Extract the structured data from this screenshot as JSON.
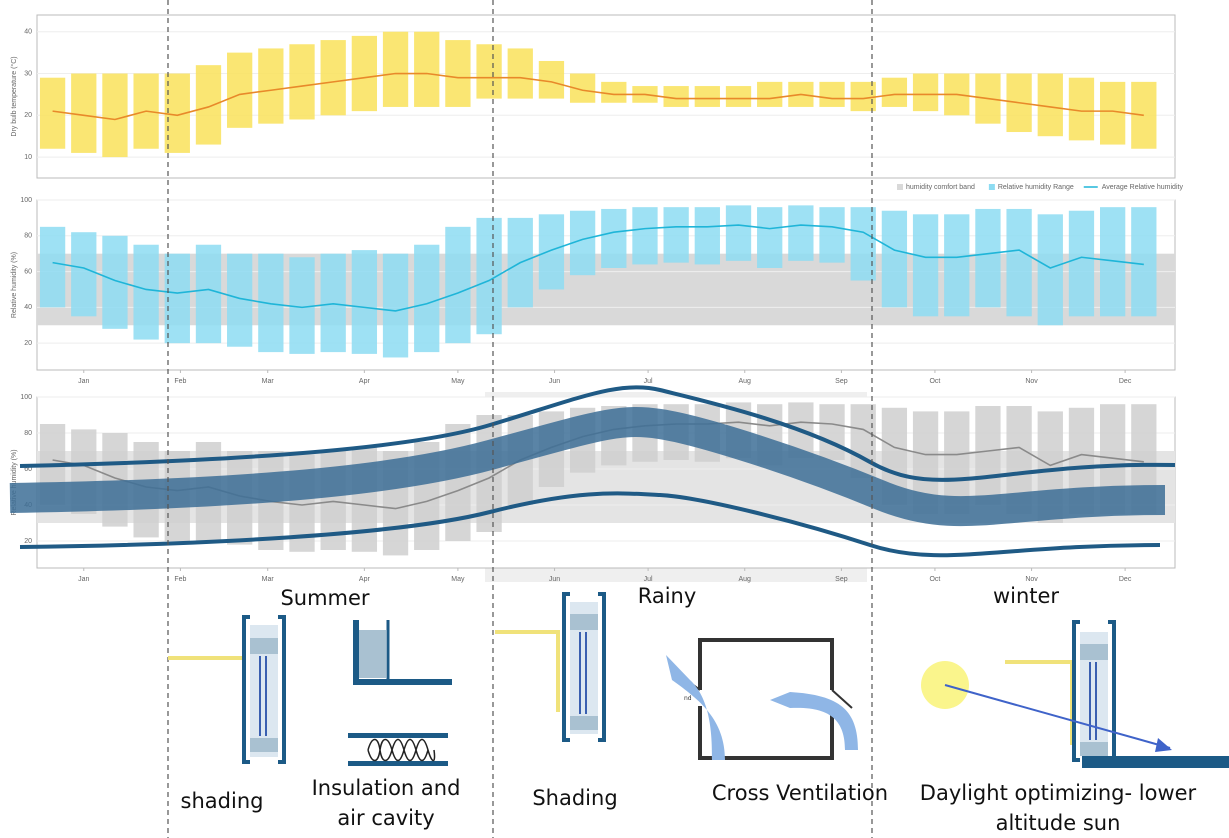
{
  "chart_data": [
    {
      "type": "line",
      "ylabel": "Dry bulb temperature (°C)",
      "x": [
        5,
        15,
        25,
        35,
        45,
        55,
        65,
        75,
        85,
        95,
        105,
        115,
        125,
        135,
        145,
        155,
        165,
        175,
        185,
        195,
        205,
        215,
        225,
        235,
        245,
        255,
        265,
        275,
        285,
        295,
        305,
        315,
        325,
        335,
        345,
        355
      ],
      "xlim": [
        0,
        365
      ],
      "ylim": [
        5,
        44
      ],
      "yticks": [
        10,
        20,
        30,
        40
      ],
      "grid": true,
      "range": {
        "color": "#f9e25a",
        "low": [
          12,
          11,
          10,
          12,
          11,
          13,
          17,
          18,
          19,
          20,
          21,
          22,
          22,
          22,
          24,
          24,
          24,
          23,
          23,
          23,
          22,
          22,
          22,
          22,
          22,
          22,
          21,
          22,
          21,
          20,
          18,
          16,
          15,
          14,
          13,
          12
        ],
        "high": [
          29,
          30,
          30,
          30,
          30,
          32,
          35,
          36,
          37,
          38,
          39,
          40,
          40,
          38,
          37,
          36,
          33,
          30,
          28,
          27,
          27,
          27,
          27,
          28,
          28,
          28,
          28,
          29,
          30,
          30,
          30,
          30,
          30,
          29,
          28,
          28
        ]
      },
      "average": {
        "color": "#e8892a",
        "values": [
          21,
          20,
          19,
          21,
          20,
          22,
          25,
          26,
          27,
          28,
          29,
          30,
          30,
          29,
          29,
          29,
          28,
          26,
          25,
          25,
          24,
          24,
          24,
          24,
          25,
          24,
          24,
          25,
          25,
          25,
          24,
          23,
          22,
          21,
          21,
          20
        ]
      }
    },
    {
      "type": "line",
      "ylabel": "Relative humidity (%)",
      "x": [
        5,
        15,
        25,
        35,
        45,
        55,
        65,
        75,
        85,
        95,
        105,
        115,
        125,
        135,
        145,
        155,
        165,
        175,
        185,
        195,
        205,
        215,
        225,
        235,
        245,
        255,
        265,
        275,
        285,
        295,
        305,
        315,
        325,
        335,
        345,
        355
      ],
      "xlim": [
        0,
        365
      ],
      "ylim": [
        5,
        100
      ],
      "yticks": [
        20,
        40,
        60,
        80,
        100
      ],
      "grid": true,
      "xticks": [
        {
          "value": 15,
          "label": "Jan"
        },
        {
          "value": 46,
          "label": "Feb"
        },
        {
          "value": 74,
          "label": "Mar"
        },
        {
          "value": 105,
          "label": "Apr"
        },
        {
          "value": 135,
          "label": "May"
        },
        {
          "value": 166,
          "label": "Jun"
        },
        {
          "value": 196,
          "label": "Jul"
        },
        {
          "value": 227,
          "label": "Aug"
        },
        {
          "value": 258,
          "label": "Sep"
        },
        {
          "value": 288,
          "label": "Oct"
        },
        {
          "value": 319,
          "label": "Nov"
        },
        {
          "value": 349,
          "label": "Dec"
        }
      ],
      "comfort_band": {
        "name": "humidity comfort band",
        "color": "#d9d9d9",
        "range": [
          30,
          70
        ]
      },
      "range": {
        "name": "Relative humidity Range",
        "color": "#8ddcf2",
        "low": [
          40,
          35,
          28,
          22,
          20,
          20,
          18,
          15,
          14,
          15,
          14,
          12,
          15,
          20,
          25,
          40,
          50,
          58,
          62,
          64,
          65,
          64,
          66,
          62,
          66,
          65,
          55,
          40,
          35,
          35,
          40,
          35,
          30,
          35,
          35,
          35
        ],
        "high": [
          85,
          82,
          80,
          75,
          70,
          75,
          70,
          70,
          68,
          70,
          72,
          70,
          75,
          85,
          90,
          90,
          92,
          94,
          95,
          96,
          96,
          96,
          97,
          96,
          97,
          96,
          96,
          94,
          92,
          92,
          95,
          95,
          92,
          94,
          96,
          96
        ]
      },
      "average": {
        "name": "Average Relative humidity",
        "color": "#1fb5d8",
        "values": [
          65,
          62,
          55,
          50,
          48,
          50,
          45,
          42,
          40,
          42,
          40,
          38,
          42,
          48,
          55,
          65,
          72,
          78,
          82,
          84,
          85,
          85,
          86,
          84,
          86,
          85,
          82,
          72,
          68,
          68,
          70,
          72,
          62,
          68,
          66,
          64
        ]
      }
    },
    {
      "type": "line",
      "ylabel": "Relative humidity (%)",
      "x": [
        5,
        15,
        25,
        35,
        45,
        55,
        65,
        75,
        85,
        95,
        105,
        115,
        125,
        135,
        145,
        155,
        165,
        175,
        185,
        195,
        205,
        215,
        225,
        235,
        245,
        255,
        265,
        275,
        285,
        295,
        305,
        315,
        325,
        335,
        345,
        355
      ],
      "xlim": [
        0,
        365
      ],
      "ylim": [
        5,
        100
      ],
      "yticks": [
        20,
        40,
        60,
        80,
        100
      ],
      "grid": true,
      "xticks": [
        {
          "value": 15,
          "label": "Jan"
        },
        {
          "value": 46,
          "label": "Feb"
        },
        {
          "value": 74,
          "label": "Mar"
        },
        {
          "value": 105,
          "label": "Apr"
        },
        {
          "value": 135,
          "label": "May"
        },
        {
          "value": 166,
          "label": "Jun"
        },
        {
          "value": 196,
          "label": "Jul"
        },
        {
          "value": 227,
          "label": "Aug"
        },
        {
          "value": 258,
          "label": "Sep"
        },
        {
          "value": 288,
          "label": "Oct"
        },
        {
          "value": 319,
          "label": "Nov"
        },
        {
          "value": 349,
          "label": "Dec"
        }
      ],
      "comfort_band": {
        "color": "#e4e4e4",
        "range": [
          30,
          70
        ]
      },
      "range": {
        "color": "#cfcfcf",
        "low": [
          40,
          35,
          28,
          22,
          20,
          20,
          18,
          15,
          14,
          15,
          14,
          12,
          15,
          20,
          25,
          40,
          50,
          58,
          62,
          64,
          65,
          64,
          66,
          62,
          66,
          65,
          55,
          40,
          35,
          35,
          40,
          35,
          30,
          35,
          35,
          35
        ],
        "high": [
          85,
          82,
          80,
          75,
          70,
          75,
          70,
          70,
          68,
          70,
          72,
          70,
          75,
          85,
          90,
          90,
          92,
          94,
          95,
          96,
          96,
          96,
          97,
          96,
          97,
          96,
          96,
          94,
          92,
          92,
          95,
          95,
          92,
          94,
          96,
          96
        ]
      },
      "average": {
        "color": "#8a8a8a",
        "values": [
          65,
          62,
          55,
          50,
          48,
          50,
          45,
          42,
          40,
          42,
          40,
          38,
          42,
          48,
          55,
          65,
          72,
          78,
          82,
          84,
          85,
          85,
          86,
          84,
          86,
          85,
          82,
          72,
          68,
          68,
          70,
          72,
          62,
          68,
          66,
          64
        ]
      }
    }
  ],
  "seasons": [
    "Summer",
    "Rainy",
    "winter"
  ],
  "strategies": [
    {
      "lines": [
        "shading"
      ]
    },
    {
      "lines": [
        "Insulation and",
        "air cavity"
      ]
    },
    {
      "lines": [
        "Shading"
      ]
    },
    {
      "lines": [
        "Cross Ventilation"
      ]
    },
    {
      "lines": [
        "Daylight optimizing- lower",
        "altitude sun"
      ]
    }
  ],
  "diagram_note": "nd"
}
